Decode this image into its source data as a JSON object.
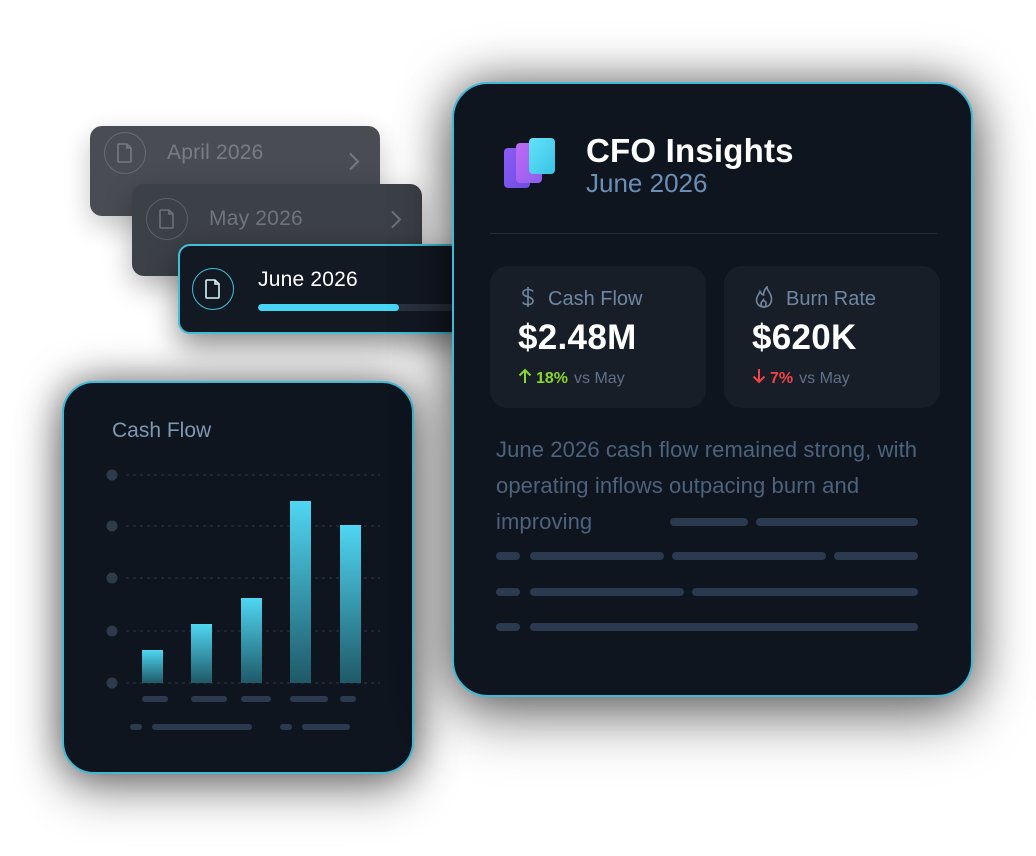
{
  "reports": [
    {
      "label": "April 2026",
      "state": "inactive"
    },
    {
      "label": "May 2026",
      "state": "inactive"
    },
    {
      "label": "June 2026",
      "state": "active",
      "progress": 0.72
    }
  ],
  "chart_data": {
    "type": "bar",
    "title": "Cash Flow",
    "categories": [
      "",
      "",
      "",
      "",
      ""
    ],
    "values": [
      33,
      59,
      85,
      182,
      158
    ],
    "ylim": [
      0,
      210
    ],
    "grid": true,
    "colors": {
      "bar_top": "#4fd6f2",
      "bar_bottom": "#1f5968"
    }
  },
  "insights": {
    "title": "CFO Insights",
    "subtitle": "June 2026",
    "logo_icon": "layered-squares-logo",
    "metrics": [
      {
        "icon": "dollar-icon",
        "label": "Cash Flow",
        "value": "$2.48M",
        "direction": "up",
        "change": "18%",
        "comparison": "vs May",
        "color": "#8ad62d"
      },
      {
        "icon": "flame-icon",
        "label": "Burn Rate",
        "value": "$620K",
        "direction": "down",
        "change": "7%",
        "comparison": "vs May",
        "color": "#f0434a"
      }
    ],
    "summary": "June 2026 cash flow remained strong, with operating inflows outpacing burn and improving"
  },
  "colors": {
    "accent": "#3fc0da",
    "card_bg": "#0f151e",
    "positive": "#8ad62d",
    "negative": "#f0434a"
  }
}
